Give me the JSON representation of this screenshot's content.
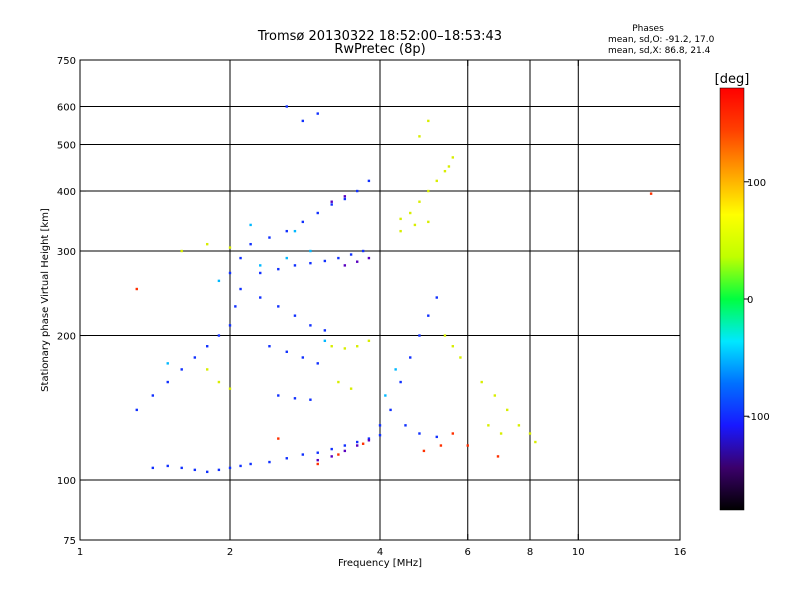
{
  "chart_data": {
    "type": "scatter",
    "title": "Tromsø 20130322 18:52:00–18:53:43",
    "subtitle": "RwPretec (8p)",
    "phase_title": "Phases",
    "phase_stats": [
      "mean, sd,O: -91.2, 17.0",
      "mean, sd,X:  86.8, 21.4"
    ],
    "xlabel": "Frequency [MHz]",
    "ylabel": "Stationary phase Virtual Height [km]",
    "x_scale": "log",
    "y_scale": "log",
    "xlim": [
      1,
      16
    ],
    "ylim": [
      75,
      750
    ],
    "x_ticks": [
      1,
      2,
      4,
      6,
      8,
      10,
      16
    ],
    "x_tick_labels": [
      "1",
      "2",
      "4",
      "6",
      "8",
      "10",
      "16"
    ],
    "y_ticks": [
      75,
      100,
      200,
      300,
      400,
      500,
      600,
      750
    ],
    "y_tick_labels": [
      "75",
      "100",
      "200",
      "300",
      "400",
      "500",
      "600",
      "750"
    ],
    "x_grid": [
      2,
      4,
      6,
      8,
      10
    ],
    "y_grid": [
      100,
      200,
      300,
      400,
      500,
      600
    ],
    "grid": true,
    "colorbar": {
      "label": "[deg]",
      "range": [
        -180,
        180
      ],
      "ticks": [
        100,
        0,
        -100
      ],
      "tick_labels": [
        "100",
        "0",
        "-100"
      ],
      "colors": [
        "#000000",
        "#3b006b",
        "#1818ff",
        "#0070ff",
        "#00e8ff",
        "#00ff40",
        "#c0ff00",
        "#ffff00",
        "#ffa000",
        "#ff4000",
        "#ff0000"
      ]
    },
    "series": [
      {
        "points": [
          [
            1.4,
            106
          ],
          [
            1.5,
            107
          ],
          [
            1.6,
            106
          ],
          [
            1.7,
            105
          ],
          [
            1.8,
            104
          ],
          [
            1.9,
            105
          ],
          [
            2.0,
            106
          ],
          [
            2.1,
            107
          ],
          [
            2.2,
            108
          ],
          [
            2.4,
            109
          ],
          [
            2.6,
            111
          ],
          [
            2.8,
            113
          ],
          [
            3.0,
            114
          ],
          [
            3.2,
            116
          ],
          [
            3.4,
            118
          ],
          [
            3.6,
            120
          ],
          [
            3.8,
            122
          ],
          [
            4.0,
            124
          ],
          [
            1.3,
            140
          ],
          [
            1.4,
            150
          ],
          [
            1.5,
            160
          ],
          [
            1.6,
            170
          ],
          [
            1.7,
            180
          ],
          [
            1.8,
            190
          ],
          [
            1.9,
            200
          ],
          [
            2.0,
            210
          ],
          [
            2.05,
            230
          ],
          [
            2.1,
            250
          ],
          [
            2.0,
            270
          ],
          [
            2.1,
            290
          ],
          [
            2.3,
            270
          ],
          [
            2.5,
            275
          ],
          [
            2.7,
            280
          ],
          [
            2.9,
            283
          ],
          [
            3.1,
            286
          ],
          [
            3.3,
            290
          ],
          [
            3.5,
            295
          ],
          [
            3.7,
            300
          ],
          [
            2.2,
            310
          ],
          [
            2.4,
            320
          ],
          [
            2.6,
            330
          ],
          [
            2.8,
            345
          ],
          [
            3.0,
            360
          ],
          [
            3.2,
            375
          ],
          [
            3.4,
            385
          ],
          [
            3.6,
            400
          ],
          [
            3.8,
            420
          ],
          [
            2.4,
            190
          ],
          [
            2.6,
            185
          ],
          [
            2.8,
            180
          ],
          [
            3.0,
            175
          ],
          [
            2.5,
            150
          ],
          [
            2.7,
            148
          ],
          [
            2.9,
            147
          ],
          [
            4.0,
            130
          ],
          [
            4.2,
            140
          ],
          [
            4.4,
            160
          ],
          [
            4.6,
            180
          ],
          [
            4.8,
            200
          ],
          [
            5.0,
            220
          ],
          [
            5.2,
            240
          ],
          [
            4.5,
            130
          ],
          [
            4.8,
            125
          ],
          [
            5.2,
            123
          ],
          [
            2.3,
            240
          ],
          [
            2.5,
            230
          ],
          [
            2.7,
            220
          ],
          [
            2.9,
            210
          ],
          [
            3.1,
            205
          ],
          [
            2.6,
            600
          ],
          [
            3.0,
            580
          ],
          [
            2.8,
            560
          ]
        ],
        "color": "#1030ff"
      },
      {
        "points": [
          [
            3.2,
            190
          ],
          [
            3.4,
            188
          ],
          [
            3.6,
            190
          ],
          [
            3.8,
            195
          ],
          [
            3.3,
            160
          ],
          [
            3.5,
            155
          ],
          [
            4.4,
            350
          ],
          [
            4.6,
            360
          ],
          [
            4.8,
            380
          ],
          [
            5.0,
            400
          ],
          [
            5.2,
            420
          ],
          [
            5.5,
            450
          ],
          [
            4.4,
            330
          ],
          [
            4.7,
            340
          ],
          [
            5.0,
            345
          ],
          [
            5.4,
            440
          ],
          [
            5.6,
            470
          ],
          [
            5.4,
            200
          ],
          [
            5.6,
            190
          ],
          [
            5.8,
            180
          ],
          [
            6.4,
            160
          ],
          [
            6.8,
            150
          ],
          [
            7.2,
            140
          ],
          [
            7.6,
            130
          ],
          [
            8.0,
            125
          ],
          [
            8.2,
            120
          ],
          [
            6.6,
            130
          ],
          [
            7.0,
            125
          ],
          [
            1.8,
            170
          ],
          [
            1.9,
            160
          ],
          [
            2.0,
            155
          ],
          [
            1.6,
            300
          ],
          [
            1.8,
            310
          ],
          [
            2.0,
            305
          ],
          [
            5.0,
            560
          ],
          [
            4.8,
            520
          ]
        ],
        "color": "#d8ee00"
      },
      {
        "points": [
          [
            3.0,
            110
          ],
          [
            3.2,
            112
          ],
          [
            3.4,
            115
          ],
          [
            3.6,
            118
          ],
          [
            3.8,
            121
          ],
          [
            3.4,
            280
          ],
          [
            3.6,
            285
          ],
          [
            3.8,
            290
          ],
          [
            3.2,
            380
          ],
          [
            3.4,
            390
          ]
        ],
        "color": "#5a00c0"
      },
      {
        "points": [
          [
            2.3,
            280
          ],
          [
            2.6,
            290
          ],
          [
            2.9,
            300
          ],
          [
            3.1,
            195
          ],
          [
            1.9,
            260
          ],
          [
            2.2,
            340
          ],
          [
            4.1,
            150
          ],
          [
            4.3,
            170
          ],
          [
            2.7,
            330
          ],
          [
            1.5,
            175
          ]
        ],
        "color": "#00b8ff"
      },
      {
        "points": [
          [
            3.0,
            108
          ],
          [
            3.3,
            113
          ],
          [
            3.7,
            119
          ],
          [
            5.6,
            125
          ],
          [
            6.0,
            118
          ],
          [
            2.5,
            122
          ],
          [
            4.9,
            115
          ],
          [
            5.3,
            118
          ],
          [
            6.9,
            112
          ],
          [
            1.3,
            250
          ],
          [
            14.0,
            395
          ]
        ],
        "color": "#ff3000"
      }
    ]
  }
}
